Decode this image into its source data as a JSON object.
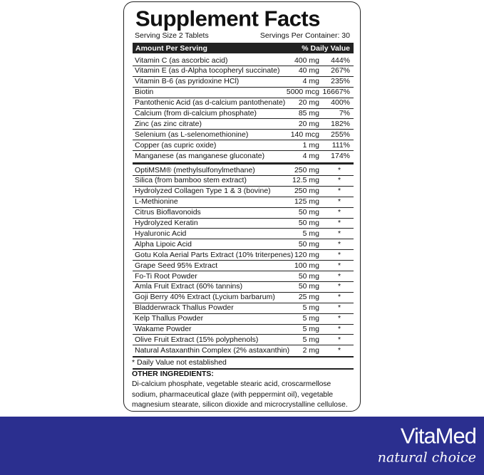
{
  "header": {
    "title": "Supplement Facts",
    "serving_size": "Serving Size 2 Tablets",
    "servings_per_container": "Servings Per Container: 30"
  },
  "table": {
    "columns": [
      "Amount Per Serving",
      "% Daily Value"
    ],
    "vitamins": [
      [
        "Vitamin C (as ascorbic acid)",
        "400 mg",
        "444%"
      ],
      [
        "Vitamin E (as d-Alpha tocopheryl succinate)",
        "40 mg",
        "267%"
      ],
      [
        "Vitamin B-6 (as pyridoxine HCl)",
        "4 mg",
        "235%"
      ],
      [
        "Biotin",
        "5000 mcg",
        "16667%"
      ],
      [
        "Pantothenic Acid (as d-calcium pantothenate)",
        "20 mg",
        "400%"
      ],
      [
        "Calcium (from di-calcium phosphate)",
        "85 mg",
        "7%"
      ],
      [
        "Zinc (as zinc citrate)",
        "20 mg",
        "182%"
      ],
      [
        "Selenium (as L-selenomethionine)",
        "140 mcg",
        "255%"
      ],
      [
        "Copper (as cupric oxide)",
        "1 mg",
        "111%"
      ],
      [
        "Manganese (as manganese gluconate)",
        "4 mg",
        "174%"
      ]
    ],
    "others": [
      [
        "OptiMSM® (methylsulfonylmethane)",
        "250 mg",
        "*"
      ],
      [
        "Silica (from bamboo stem extract)",
        "12.5 mg",
        "*"
      ],
      [
        "Hydrolyzed Collagen Type 1 & 3 (bovine)",
        "250 mg",
        "*"
      ],
      [
        "L-Methionine",
        "125 mg",
        "*"
      ],
      [
        "Citrus Bioflavonoids",
        "50 mg",
        "*"
      ],
      [
        "Hydrolyzed Keratin",
        "50 mg",
        "*"
      ],
      [
        "Hyaluronic Acid",
        "5 mg",
        "*"
      ],
      [
        "Alpha Lipoic Acid",
        "50 mg",
        "*"
      ],
      [
        "Gotu Kola Aerial Parts Extract (10% triterpenes)",
        "120 mg",
        "*"
      ],
      [
        "Grape Seed 95% Extract",
        "100 mg",
        "*"
      ],
      [
        "Fo-Ti Root Powder",
        "50 mg",
        "*"
      ],
      [
        "Amla Fruit Extract (60% tannins)",
        "50 mg",
        "*"
      ],
      [
        "Goji Berry 40% Extract (Lycium barbarum)",
        "25 mg",
        "*"
      ],
      [
        "Bladderwrack Thallus Powder",
        "5 mg",
        "*"
      ],
      [
        "Kelp Thallus Powder",
        "5 mg",
        "*"
      ],
      [
        "Wakame Powder",
        "5 mg",
        "*"
      ],
      [
        "Olive Fruit Extract (15% polyphenols)",
        "5 mg",
        "*"
      ],
      [
        "Natural Astaxanthin Complex (2% astaxanthin)",
        "2 mg",
        "*"
      ]
    ]
  },
  "footnote": "* Daily Value not established",
  "other_ingredients": {
    "title": "OTHER INGREDIENTS:",
    "lines": [
      "Di-calcium phosphate, vegetable stearic acid, croscarmellose",
      "sodium, pharmaceutical glaze (with peppermint oil), vegetable",
      "magnesium stearate, silicon dioxide and microcrystalline cellulose."
    ]
  },
  "brand": {
    "name": "VitaMed",
    "tagline": "natural choice"
  }
}
